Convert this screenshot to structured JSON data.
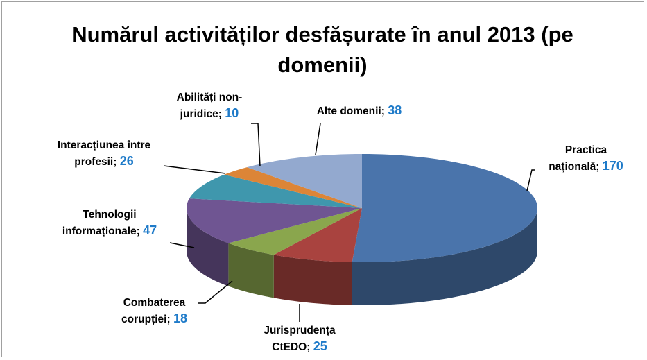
{
  "chart_data": {
    "type": "pie",
    "title": "Numărul activităților desfășurate în anul 2013 (pe domenii)",
    "categories": [
      "Practica națională;",
      "Jurisprudența CtEDO;",
      "Combaterea corupției;",
      "Tehnologii informaționale;",
      "Interacțiunea între profesii;",
      "Abilități non-juridice;",
      "Alte domenii;"
    ],
    "values": [
      170,
      25,
      18,
      47,
      26,
      10,
      38
    ],
    "colors": [
      "#4a74ab",
      "#a9433f",
      "#8aa64d",
      "#6f5592",
      "#3f97ad",
      "#dc8537",
      "#93a9cf"
    ]
  }
}
